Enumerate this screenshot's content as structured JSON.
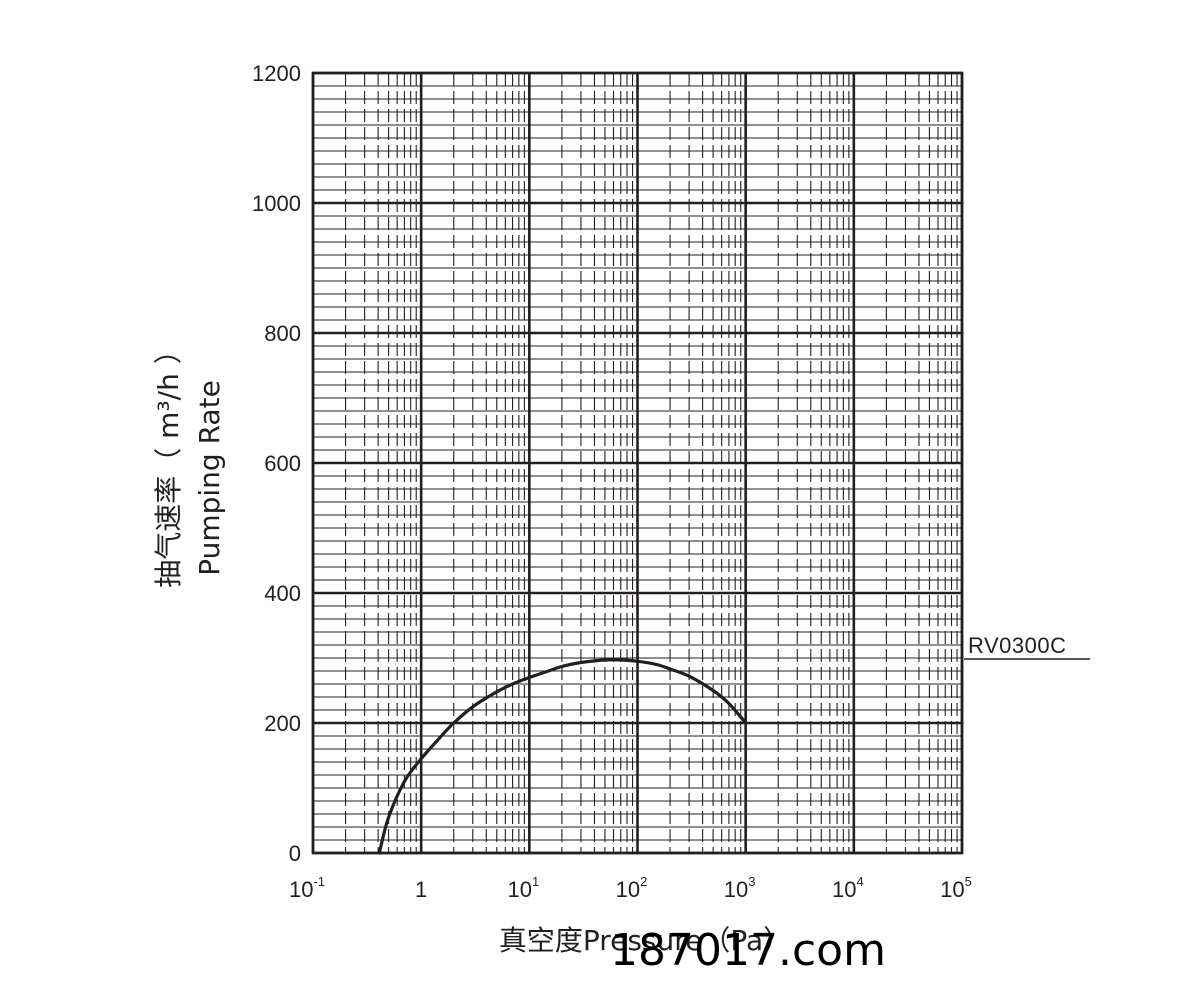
{
  "chart_data": {
    "type": "line",
    "ylabel_cn": "抽气速率（ m³/h ）",
    "ylabel_en": "Pumping Rate",
    "xlabel": "真空度Pressure（Pa）",
    "x_scale": "log",
    "xlim": [
      0.1,
      100000
    ],
    "ylim": [
      0,
      1200
    ],
    "grid": true,
    "y_ticks": [
      0,
      200,
      400,
      600,
      800,
      1000,
      1200
    ],
    "y_tick_labels": [
      "0",
      "200",
      "400",
      "600",
      "800",
      "1000",
      "1200"
    ],
    "x_ticks": [
      {
        "value": 0.1,
        "base": "10",
        "exp": "-1"
      },
      {
        "value": 1,
        "base": "1",
        "exp": ""
      },
      {
        "value": 10,
        "base": "10",
        "exp": "1"
      },
      {
        "value": 100,
        "base": "10",
        "exp": "2"
      },
      {
        "value": 1000,
        "base": "10",
        "exp": "3"
      },
      {
        "value": 10000,
        "base": "10",
        "exp": "4"
      },
      {
        "value": 100000,
        "base": "10",
        "exp": "5"
      }
    ],
    "series": [
      {
        "name": "RV0300C",
        "x": [
          0.41,
          0.5,
          0.7,
          1.0,
          1.5,
          2.0,
          3.0,
          5.0,
          7.0,
          10,
          15,
          20,
          30,
          50,
          70,
          100,
          150,
          200,
          300,
          500,
          700,
          1000
        ],
        "y": [
          0,
          55,
          110,
          145,
          178,
          200,
          225,
          248,
          260,
          270,
          280,
          287,
          293,
          297,
          297,
          295,
          290,
          283,
          272,
          250,
          230,
          200
        ]
      }
    ]
  },
  "watermark": "187017.com"
}
